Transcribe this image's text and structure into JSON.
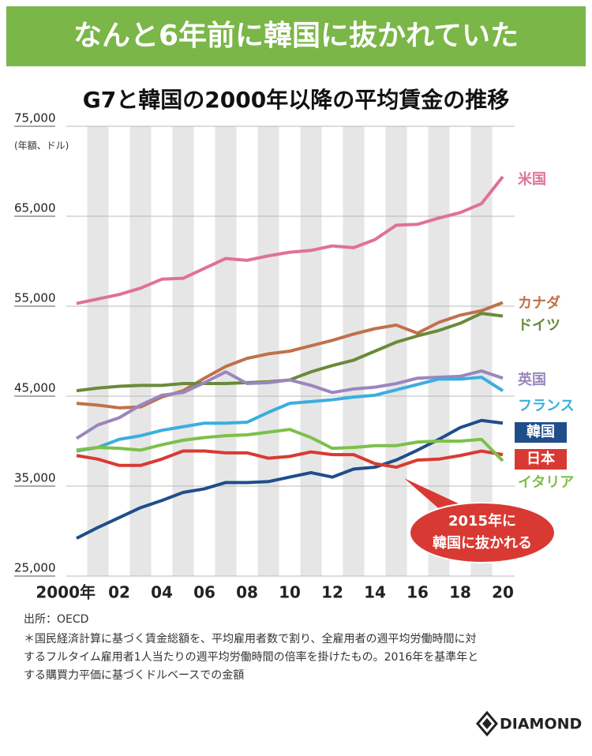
{
  "header": {
    "title": "なんと6年前に韓国に抜かれていた"
  },
  "chart_data": {
    "type": "line",
    "title": "G7と韓国の2000年以降の平均賃金の推移",
    "y_label": "(年額、ドル)",
    "x": [
      2000,
      2001,
      2002,
      2003,
      2004,
      2005,
      2006,
      2007,
      2008,
      2009,
      2010,
      2011,
      2012,
      2013,
      2014,
      2015,
      2016,
      2017,
      2018,
      2019,
      2020
    ],
    "xlim": [
      2000,
      2020
    ],
    "xticks": [
      {
        "value": 2000,
        "label": "2000年"
      },
      {
        "value": 2002,
        "label": "02"
      },
      {
        "value": 2004,
        "label": "04"
      },
      {
        "value": 2006,
        "label": "06"
      },
      {
        "value": 2008,
        "label": "08"
      },
      {
        "value": 2010,
        "label": "10"
      },
      {
        "value": 2012,
        "label": "12"
      },
      {
        "value": 2014,
        "label": "14"
      },
      {
        "value": 2016,
        "label": "16"
      },
      {
        "value": 2018,
        "label": "18"
      },
      {
        "value": 2020,
        "label": "20"
      }
    ],
    "ylim": [
      25000,
      75000
    ],
    "yticks": [
      {
        "value": 25000,
        "label": "25,000"
      },
      {
        "value": 35000,
        "label": "35,000"
      },
      {
        "value": 45000,
        "label": "45,000"
      },
      {
        "value": 55000,
        "label": "55,000"
      },
      {
        "value": 65000,
        "label": "65,000"
      },
      {
        "value": 75000,
        "label": "75,000"
      }
    ],
    "grid": true,
    "series": [
      {
        "name": "米国",
        "color": "#e0709a",
        "values": [
          55300,
          55800,
          56300,
          57000,
          58000,
          58100,
          59200,
          60300,
          60100,
          60600,
          61000,
          61200,
          61700,
          61500,
          62400,
          64000,
          64100,
          64800,
          65400,
          66400,
          69400
        ]
      },
      {
        "name": "カナダ",
        "color": "#c0714a",
        "values": [
          44200,
          44000,
          43700,
          43800,
          44900,
          45600,
          47000,
          48300,
          49200,
          49700,
          50000,
          50600,
          51200,
          51900,
          52500,
          52900,
          52000,
          53200,
          54000,
          54500,
          55400
        ]
      },
      {
        "name": "ドイツ",
        "color": "#6a8a3a",
        "values": [
          45600,
          45900,
          46100,
          46200,
          46200,
          46400,
          46400,
          46400,
          46500,
          46600,
          46800,
          47700,
          48400,
          49000,
          50000,
          51000,
          51700,
          52300,
          53100,
          54200,
          53900
        ]
      },
      {
        "name": "英国",
        "color": "#9a86bf",
        "values": [
          40300,
          41800,
          42600,
          44000,
          45100,
          45400,
          46500,
          47700,
          46400,
          46500,
          46800,
          46200,
          45400,
          45800,
          46000,
          46400,
          47000,
          47100,
          47200,
          47800,
          47000
        ]
      },
      {
        "name": "フランス",
        "color": "#3aaee0",
        "values": [
          38900,
          39300,
          40200,
          40600,
          41200,
          41600,
          42000,
          42000,
          42100,
          43200,
          44200,
          44400,
          44600,
          44900,
          45100,
          45700,
          46300,
          46900,
          46900,
          47100,
          45600
        ]
      },
      {
        "name": "韓国",
        "color": "#1f4e8a",
        "values": [
          29200,
          30400,
          31500,
          32600,
          33400,
          34300,
          34700,
          35400,
          35400,
          35500,
          36000,
          36500,
          36000,
          36900,
          37100,
          37900,
          39000,
          40200,
          41500,
          42300,
          42000
        ]
      },
      {
        "name": "日本",
        "color": "#d83a33",
        "values": [
          38400,
          38000,
          37300,
          37300,
          38000,
          38900,
          38900,
          38700,
          38700,
          38100,
          38300,
          38800,
          38500,
          38500,
          37500,
          37100,
          37900,
          38000,
          38400,
          38900,
          38500
        ]
      },
      {
        "name": "イタリア",
        "color": "#7cc04a",
        "values": [
          39000,
          39300,
          39200,
          39000,
          39600,
          40100,
          40400,
          40600,
          40700,
          41000,
          41300,
          40400,
          39200,
          39300,
          39500,
          39500,
          39900,
          40000,
          40000,
          40200,
          37800
        ]
      }
    ],
    "annotation": [
      "2015年に",
      "韓国に抜かれる"
    ]
  },
  "footer": {
    "source": "出所：OECD",
    "notes": [
      "＊国民経済計算に基づく賃金総額を、平均雇用者数で割り、全雇用者の週平均労働時間に対",
      "するフルタイム雇用者1人当たりの週平均労働時間の倍率を掛けたもの。2016年を基準年と",
      "する購買力平価に基づくドルベースでの金額"
    ],
    "brand": "DIAMOND"
  }
}
